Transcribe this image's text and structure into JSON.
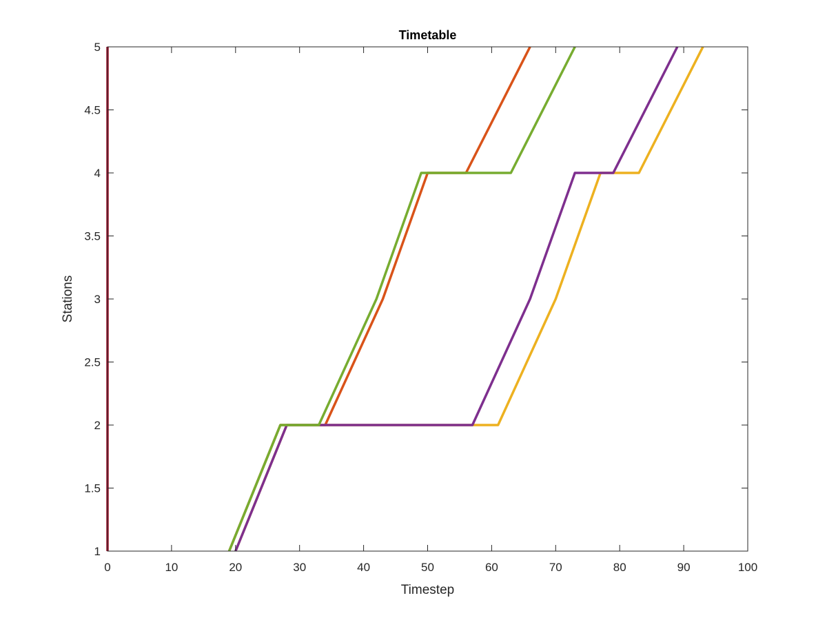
{
  "chart_data": {
    "type": "line",
    "title": "Timetable",
    "xlabel": "Timestep",
    "ylabel": "Stations",
    "xlim": [
      0,
      100
    ],
    "ylim": [
      1,
      5
    ],
    "xticks": [
      0,
      10,
      20,
      30,
      40,
      50,
      60,
      70,
      80,
      90,
      100
    ],
    "yticks": [
      1,
      1.5,
      2,
      2.5,
      3,
      3.5,
      4,
      4.5,
      5
    ],
    "xtick_labels": [
      "0",
      "10",
      "20",
      "30",
      "40",
      "50",
      "60",
      "70",
      "80",
      "90",
      "100"
    ],
    "ytick_labels": [
      "1",
      "1.5",
      "2",
      "2.5",
      "3",
      "3.5",
      "4",
      "4.5",
      "5"
    ],
    "grid": false,
    "series": [
      {
        "color": "#A2142F",
        "points": [
          [
            0,
            1
          ],
          [
            0,
            5
          ]
        ]
      },
      {
        "color": "#D95319",
        "points": [
          [
            19,
            1
          ],
          [
            27,
            2
          ],
          [
            34,
            2
          ],
          [
            43,
            3
          ],
          [
            50,
            4
          ],
          [
            56,
            4
          ],
          [
            66,
            5
          ]
        ]
      },
      {
        "color": "#EDB120",
        "points": [
          [
            20,
            1
          ],
          [
            28,
            2
          ],
          [
            61,
            2
          ],
          [
            70,
            3
          ],
          [
            77,
            4
          ],
          [
            83,
            4
          ],
          [
            93,
            5
          ]
        ]
      },
      {
        "color": "#7E2F8E",
        "points": [
          [
            20,
            1
          ],
          [
            28,
            2
          ],
          [
            57,
            2
          ],
          [
            66,
            3
          ],
          [
            73,
            4
          ],
          [
            79,
            4
          ],
          [
            89,
            5
          ]
        ]
      },
      {
        "color": "#77AC30",
        "points": [
          [
            19,
            1
          ],
          [
            27,
            2
          ],
          [
            33,
            2
          ],
          [
            42,
            3
          ],
          [
            49,
            4
          ],
          [
            63,
            4
          ],
          [
            73,
            5
          ]
        ]
      }
    ]
  }
}
